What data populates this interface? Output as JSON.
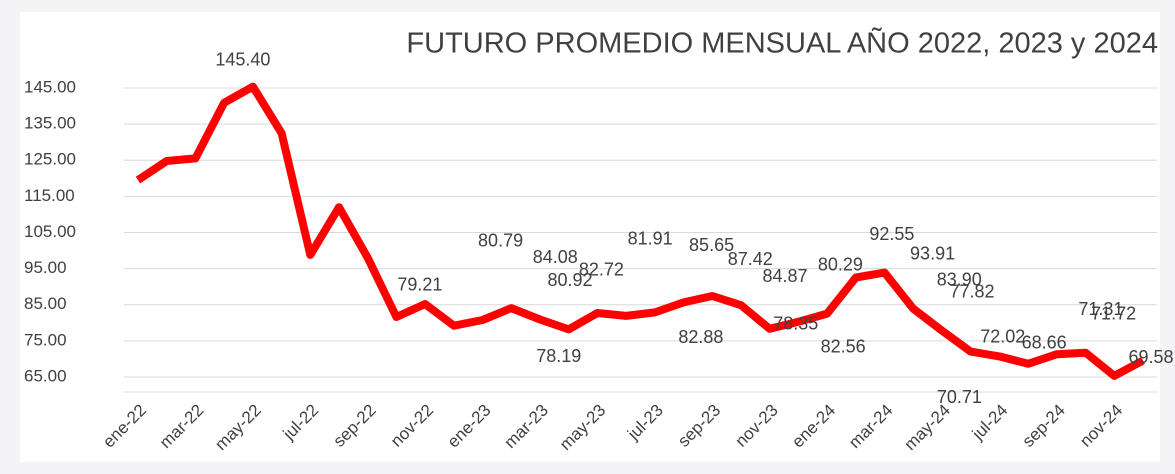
{
  "chart_data": {
    "type": "line",
    "title": "FUTURO PROMEDIO MENSUAL AÑO 2022,  2023 y 2024",
    "categories": [
      "ene-22",
      null,
      "mar-22",
      null,
      "may-22",
      null,
      "jul-22",
      null,
      "sep-22",
      null,
      "nov-22",
      null,
      "ene-23",
      null,
      "mar-23",
      null,
      "may-23",
      null,
      "jul-23",
      null,
      "sep-23",
      null,
      "nov-23",
      null,
      "ene-24",
      null,
      "mar-24",
      null,
      "may-24",
      null,
      "jul-24",
      null,
      "sep-24",
      null,
      "nov-24",
      null
    ],
    "series": [
      {
        "name": null,
        "color": "#ff0000",
        "values": [
          119.5,
          124.8,
          125.5,
          140.9,
          145.4,
          132.5,
          98.8,
          112,
          98,
          81.6,
          85.2,
          79.21,
          80.79,
          84.08,
          80.92,
          78.19,
          82.72,
          81.91,
          82.88,
          85.65,
          87.42,
          84.87,
          78.35,
          80.29,
          82.56,
          92.55,
          93.91,
          83.9,
          77.82,
          72.02,
          70.71,
          68.66,
          71.31,
          71.72,
          65.3,
          69.58
        ],
        "value_labels": [
          null,
          null,
          null,
          null,
          "145.40",
          null,
          null,
          null,
          null,
          null,
          null,
          "79.21",
          "80.79",
          "84.08",
          "80.92",
          "78.19",
          "82.72",
          "81.91",
          "82.88",
          "85.65",
          "87.42",
          "84.87",
          "78.35",
          "80.29",
          "82.56",
          "92.55",
          "93.91",
          "83.90",
          "77.82",
          "72.02",
          "70.71",
          "68.66",
          "71.31",
          "71.72",
          null,
          "69.58"
        ]
      }
    ],
    "ylim": [
      62,
      148
    ],
    "yticks": [
      {
        "value": 65,
        "label": "65.00"
      },
      {
        "value": 75,
        "label": "75.00"
      },
      {
        "value": 85,
        "label": "85.00"
      },
      {
        "value": 95,
        "label": "95.00"
      },
      {
        "value": 105,
        "label": "105.00"
      },
      {
        "value": 115,
        "label": "115.00"
      },
      {
        "value": 125,
        "label": "125.00"
      },
      {
        "value": 135,
        "label": "135.00"
      },
      {
        "value": 145,
        "label": "145.00"
      }
    ],
    "grid": true
  }
}
